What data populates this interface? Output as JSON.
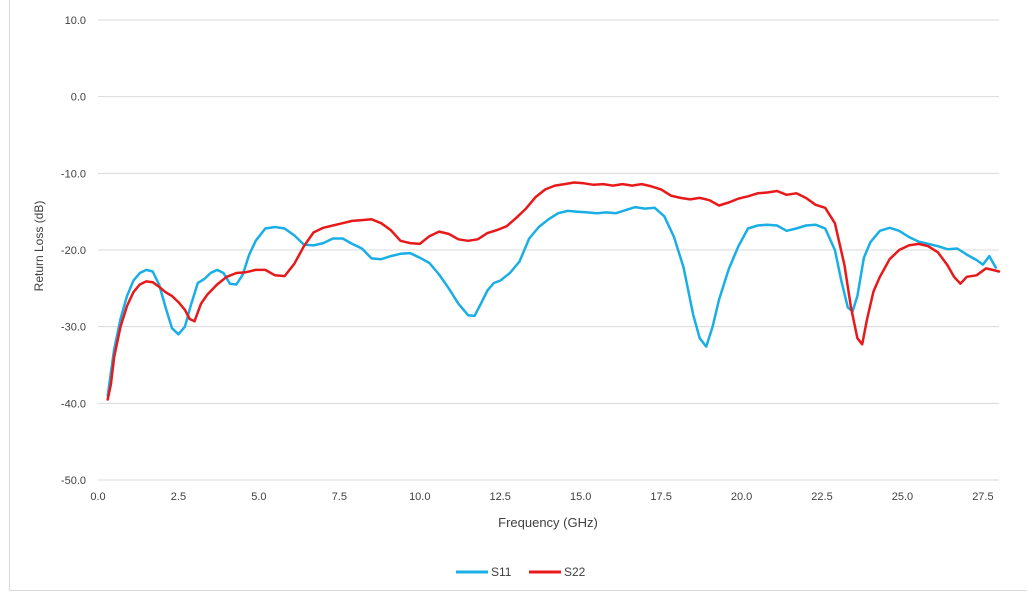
{
  "chart_data": {
    "type": "line",
    "xlabel": "Frequency (GHz)",
    "ylabel": "Return Loss (dB)",
    "xlim": [
      0,
      28
    ],
    "ylim": [
      -50,
      10
    ],
    "x_ticks": [
      "0.0",
      "2.5",
      "5.0",
      "7.5",
      "10.0",
      "12.5",
      "15.0",
      "17.5",
      "20.0",
      "22.5",
      "25.0",
      "27.5"
    ],
    "x_tick_values": [
      0,
      2.5,
      5,
      7.5,
      10,
      12.5,
      15,
      17.5,
      20,
      22.5,
      25,
      27.5
    ],
    "y_ticks": [
      "10.0",
      "0.0",
      "-10.0",
      "-20.0",
      "-30.0",
      "-40.0",
      "-50.0"
    ],
    "y_tick_values": [
      10,
      0,
      -10,
      -20,
      -30,
      -40,
      -50
    ],
    "grid": "horizontal",
    "legend_position": "bottom",
    "series": [
      {
        "name": "S11",
        "color": "#1aaee6",
        "x": [
          0.3,
          0.4,
          0.5,
          0.7,
          0.9,
          1.1,
          1.3,
          1.5,
          1.7,
          1.9,
          2.1,
          2.3,
          2.5,
          2.7,
          2.9,
          3.1,
          3.3,
          3.5,
          3.7,
          3.9,
          4.1,
          4.3,
          4.5,
          4.7,
          4.9,
          5.2,
          5.5,
          5.8,
          6.1,
          6.4,
          6.7,
          7.0,
          7.3,
          7.6,
          7.9,
          8.2,
          8.5,
          8.8,
          9.1,
          9.4,
          9.7,
          10.0,
          10.3,
          10.6,
          10.9,
          11.2,
          11.5,
          11.7,
          11.9,
          12.1,
          12.3,
          12.5,
          12.8,
          13.1,
          13.4,
          13.7,
          14.0,
          14.3,
          14.6,
          14.9,
          15.2,
          15.5,
          15.8,
          16.1,
          16.4,
          16.7,
          17.0,
          17.3,
          17.6,
          17.9,
          18.2,
          18.5,
          18.7,
          18.9,
          19.1,
          19.3,
          19.6,
          19.9,
          20.2,
          20.5,
          20.8,
          21.1,
          21.4,
          21.7,
          22.0,
          22.3,
          22.6,
          22.9,
          23.1,
          23.3,
          23.45,
          23.6,
          23.8,
          24.0,
          24.3,
          24.6,
          24.9,
          25.2,
          25.5,
          25.8,
          26.1,
          26.4,
          26.7,
          27.0,
          27.3,
          27.5,
          27.7,
          27.9
        ],
        "y": [
          -39,
          -36,
          -33,
          -29,
          -26,
          -24,
          -23,
          -22.6,
          -22.8,
          -24.5,
          -27.5,
          -30.2,
          -31,
          -30,
          -27,
          -24.3,
          -23.8,
          -23,
          -22.6,
          -23,
          -24.4,
          -24.5,
          -23.2,
          -20.6,
          -18.8,
          -17.2,
          -17,
          -17.2,
          -18.1,
          -19.3,
          -19.4,
          -19.1,
          -18.5,
          -18.5,
          -19.2,
          -19.8,
          -21.1,
          -21.2,
          -20.8,
          -20.5,
          -20.4,
          -21,
          -21.7,
          -23.2,
          -25,
          -27,
          -28.5,
          -28.6,
          -27,
          -25.3,
          -24.3,
          -24,
          -23,
          -21.5,
          -18.5,
          -17,
          -16,
          -15.2,
          -14.9,
          -15,
          -15.1,
          -15.2,
          -15.1,
          -15.2,
          -14.8,
          -14.4,
          -14.6,
          -14.5,
          -15.6,
          -18.3,
          -22.3,
          -28.5,
          -31.5,
          -32.6,
          -30,
          -26.5,
          -22.5,
          -19.5,
          -17.2,
          -16.8,
          -16.7,
          -16.8,
          -17.5,
          -17.2,
          -16.8,
          -16.7,
          -17.2,
          -20,
          -24,
          -27.5,
          -28,
          -26,
          -21,
          -19,
          -17.5,
          -17.1,
          -17.5,
          -18.3,
          -18.9,
          -19.2,
          -19.5,
          -19.9,
          -19.8,
          -20.6,
          -21.3,
          -21.9,
          -20.8,
          -22.3
        ]
      },
      {
        "name": "S22",
        "color": "#e8191a",
        "x": [
          0.3,
          0.4,
          0.5,
          0.7,
          0.9,
          1.1,
          1.3,
          1.5,
          1.7,
          1.9,
          2.1,
          2.3,
          2.5,
          2.7,
          2.85,
          3.0,
          3.2,
          3.4,
          3.7,
          4.0,
          4.3,
          4.6,
          4.9,
          5.2,
          5.5,
          5.8,
          6.1,
          6.4,
          6.7,
          7.0,
          7.3,
          7.6,
          7.9,
          8.2,
          8.5,
          8.8,
          9.1,
          9.4,
          9.7,
          10.0,
          10.3,
          10.6,
          10.9,
          11.2,
          11.5,
          11.8,
          12.1,
          12.4,
          12.7,
          13.0,
          13.3,
          13.6,
          13.9,
          14.2,
          14.5,
          14.8,
          15.1,
          15.4,
          15.7,
          16.0,
          16.3,
          16.6,
          16.9,
          17.2,
          17.5,
          17.8,
          18.1,
          18.4,
          18.7,
          19.0,
          19.3,
          19.6,
          19.9,
          20.2,
          20.5,
          20.8,
          21.1,
          21.4,
          21.7,
          22.0,
          22.3,
          22.6,
          22.9,
          23.2,
          23.4,
          23.6,
          23.75,
          23.9,
          24.1,
          24.3,
          24.6,
          24.9,
          25.2,
          25.5,
          25.8,
          26.1,
          26.4,
          26.6,
          26.8,
          27.0,
          27.3,
          27.6,
          27.8,
          28.0
        ],
        "y": [
          -39.5,
          -37.5,
          -34,
          -30,
          -27.3,
          -25.5,
          -24.5,
          -24.1,
          -24.2,
          -24.8,
          -25.5,
          -26,
          -26.8,
          -27.8,
          -29,
          -29.3,
          -27,
          -25.8,
          -24.5,
          -23.5,
          -23,
          -22.9,
          -22.6,
          -22.6,
          -23.3,
          -23.4,
          -21.8,
          -19.5,
          -17.7,
          -17.1,
          -16.8,
          -16.5,
          -16.2,
          -16.1,
          -16,
          -16.5,
          -17.4,
          -18.8,
          -19.1,
          -19.2,
          -18.2,
          -17.6,
          -17.9,
          -18.6,
          -18.8,
          -18.6,
          -17.8,
          -17.4,
          -16.9,
          -15.8,
          -14.6,
          -13.1,
          -12.1,
          -11.6,
          -11.4,
          -11.2,
          -11.3,
          -11.5,
          -11.4,
          -11.6,
          -11.4,
          -11.6,
          -11.4,
          -11.7,
          -12.1,
          -12.9,
          -13.2,
          -13.4,
          -13.2,
          -13.5,
          -14.2,
          -13.8,
          -13.3,
          -13,
          -12.6,
          -12.5,
          -12.3,
          -12.8,
          -12.6,
          -13.2,
          -14.1,
          -14.5,
          -16.5,
          -22,
          -27.5,
          -31.5,
          -32.3,
          -29,
          -25.4,
          -23.5,
          -21.2,
          -20,
          -19.4,
          -19.2,
          -19.5,
          -20.3,
          -22,
          -23.5,
          -24.4,
          -23.5,
          -23.3,
          -22.4,
          -22.6,
          -22.8
        ]
      }
    ]
  }
}
